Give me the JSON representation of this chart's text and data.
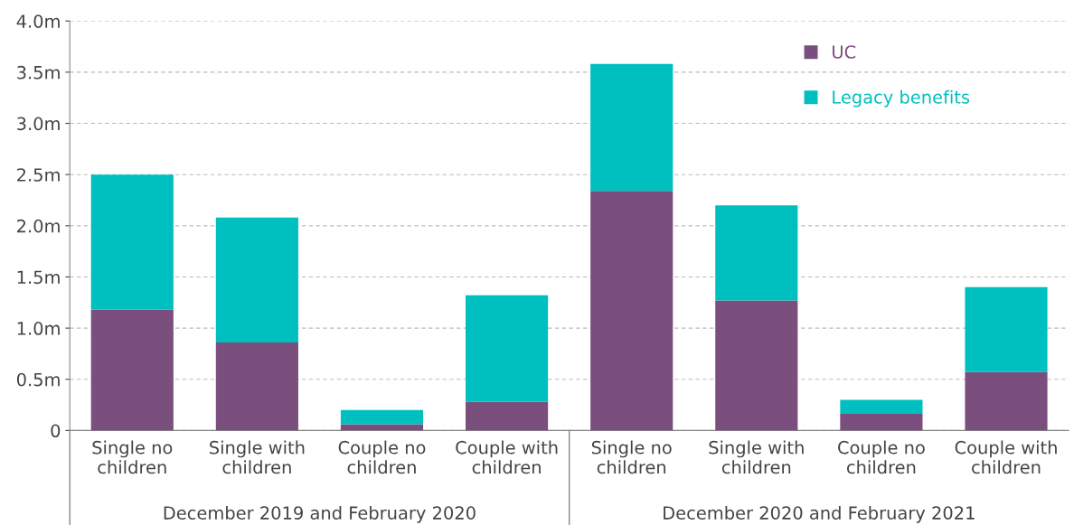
{
  "chart_data": {
    "type": "bar",
    "stacked": true,
    "categories": [
      "Single no\nchildren",
      "Single with\nchildren",
      "Couple no\nchildren",
      "Couple with\nchildren",
      "Single no\nchildren",
      "Single with\nchildren",
      "Couple no\nchildren",
      "Couple with\nchildren"
    ],
    "series": [
      {
        "name": "UC",
        "color": "#7a4f7d",
        "values": [
          1.18,
          0.86,
          0.06,
          0.28,
          2.34,
          1.27,
          0.17,
          0.57
        ]
      },
      {
        "name": "Legacy benefits",
        "color": "#00bfbf",
        "values": [
          1.32,
          1.22,
          0.14,
          1.04,
          1.24,
          0.93,
          0.13,
          0.83
        ]
      }
    ],
    "ylim": [
      0,
      4.0
    ],
    "yticks": [
      {
        "value": 0,
        "label": "0"
      },
      {
        "value": 0.5,
        "label": "0.5m"
      },
      {
        "value": 1.0,
        "label": "1.0m"
      },
      {
        "value": 1.5,
        "label": "1.5m"
      },
      {
        "value": 2.0,
        "label": "2.0m"
      },
      {
        "value": 2.5,
        "label": "2.5m"
      },
      {
        "value": 3.0,
        "label": "3.0m"
      },
      {
        "value": 3.5,
        "label": "3.5m"
      },
      {
        "value": 4.0,
        "label": "4.0m"
      }
    ],
    "grid": "y",
    "legend": "top right",
    "annotations": [
      "December 2019 and February 2020",
      "December 2020 and February 2021"
    ]
  }
}
